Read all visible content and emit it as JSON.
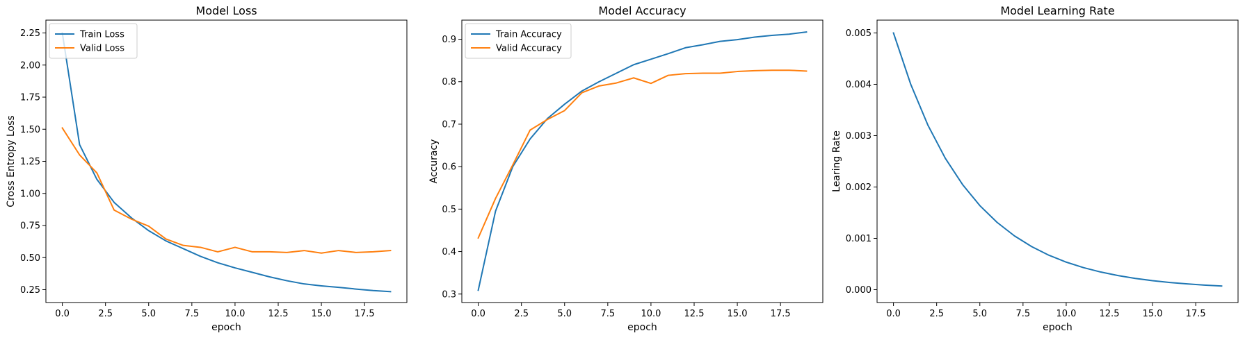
{
  "chart_data": [
    {
      "type": "line",
      "title": "Model Loss",
      "xlabel": "epoch",
      "ylabel": "Cross Entropy Loss",
      "xlim": [
        -0.95,
        19.95
      ],
      "ylim": [
        0.15,
        2.35
      ],
      "xticks": [
        0,
        2.5,
        5,
        7.5,
        10,
        12.5,
        15,
        17.5
      ],
      "xtick_labels": [
        "0.0",
        "2.5",
        "5.0",
        "7.5",
        "10.0",
        "12.5",
        "15.0",
        "17.5"
      ],
      "yticks": [
        0.25,
        0.5,
        0.75,
        1.0,
        1.25,
        1.5,
        1.75,
        2.0,
        2.25
      ],
      "ytick_labels": [
        "0.25",
        "0.50",
        "0.75",
        "1.00",
        "1.25",
        "1.50",
        "1.75",
        "2.00",
        "2.25"
      ],
      "grid": false,
      "legend_position": "upper-left",
      "x": [
        0,
        1,
        2,
        3,
        4,
        5,
        6,
        7,
        8,
        9,
        10,
        11,
        12,
        13,
        14,
        15,
        16,
        17,
        18,
        19
      ],
      "series": [
        {
          "name": "Train Loss",
          "color": "#1f77b4",
          "values": [
            2.25,
            1.38,
            1.11,
            0.93,
            0.81,
            0.71,
            0.63,
            0.57,
            0.51,
            0.46,
            0.42,
            0.385,
            0.35,
            0.32,
            0.295,
            0.28,
            0.268,
            0.255,
            0.243,
            0.235
          ]
        },
        {
          "name": "Valid Loss",
          "color": "#ff7f0e",
          "values": [
            1.51,
            1.3,
            1.16,
            0.87,
            0.8,
            0.745,
            0.645,
            0.595,
            0.58,
            0.545,
            0.58,
            0.545,
            0.545,
            0.54,
            0.555,
            0.535,
            0.555,
            0.54,
            0.545,
            0.555
          ]
        }
      ]
    },
    {
      "type": "line",
      "title": "Model Accuracy",
      "xlabel": "epoch",
      "ylabel": "Accuracy",
      "xlim": [
        -0.95,
        19.95
      ],
      "ylim": [
        0.28,
        0.945
      ],
      "xticks": [
        0,
        2.5,
        5,
        7.5,
        10,
        12.5,
        15,
        17.5
      ],
      "xtick_labels": [
        "0.0",
        "2.5",
        "5.0",
        "7.5",
        "10.0",
        "12.5",
        "15.0",
        "17.5"
      ],
      "yticks": [
        0.3,
        0.4,
        0.5,
        0.6,
        0.7,
        0.8,
        0.9
      ],
      "ytick_labels": [
        "0.3",
        "0.4",
        "0.5",
        "0.6",
        "0.7",
        "0.8",
        "0.9"
      ],
      "grid": false,
      "legend_position": "upper-left",
      "x": [
        0,
        1,
        2,
        3,
        4,
        5,
        6,
        7,
        8,
        9,
        10,
        11,
        12,
        13,
        14,
        15,
        16,
        17,
        18,
        19
      ],
      "series": [
        {
          "name": "Train Accuracy",
          "color": "#1f77b4",
          "values": [
            0.309,
            0.495,
            0.6,
            0.665,
            0.713,
            0.747,
            0.778,
            0.8,
            0.82,
            0.84,
            0.853,
            0.866,
            0.88,
            0.887,
            0.895,
            0.899,
            0.905,
            0.909,
            0.912,
            0.917
          ]
        },
        {
          "name": "Valid Accuracy",
          "color": "#ff7f0e",
          "values": [
            0.432,
            0.525,
            0.604,
            0.686,
            0.711,
            0.732,
            0.774,
            0.79,
            0.797,
            0.809,
            0.796,
            0.815,
            0.819,
            0.82,
            0.82,
            0.824,
            0.826,
            0.827,
            0.827,
            0.825
          ]
        }
      ]
    },
    {
      "type": "line",
      "title": "Model Learning Rate",
      "xlabel": "epoch",
      "ylabel": "Learing Rate",
      "xlim": [
        -0.95,
        19.95
      ],
      "ylim": [
        -0.00025,
        0.00525
      ],
      "xticks": [
        0,
        2.5,
        5,
        7.5,
        10,
        12.5,
        15,
        17.5
      ],
      "xtick_labels": [
        "0.0",
        "2.5",
        "5.0",
        "7.5",
        "10.0",
        "12.5",
        "15.0",
        "17.5"
      ],
      "yticks": [
        0.0,
        0.001,
        0.002,
        0.003,
        0.004,
        0.005
      ],
      "ytick_labels": [
        "0.000",
        "0.001",
        "0.002",
        "0.003",
        "0.004",
        "0.005"
      ],
      "grid": false,
      "x": [
        0,
        1,
        2,
        3,
        4,
        5,
        6,
        7,
        8,
        9,
        10,
        11,
        12,
        13,
        14,
        15,
        16,
        17,
        18,
        19
      ],
      "series": [
        {
          "color": "#1f77b4",
          "values": [
            0.005,
            0.004,
            0.0032,
            0.00256,
            0.002048,
            0.001638,
            0.001311,
            0.001049,
            0.000839,
            0.000671,
            0.000537,
            0.00043,
            0.000344,
            0.000275,
            0.00022,
            0.000176,
            0.000141,
            0.000113,
            9e-05,
            7.2e-05
          ]
        }
      ]
    }
  ]
}
